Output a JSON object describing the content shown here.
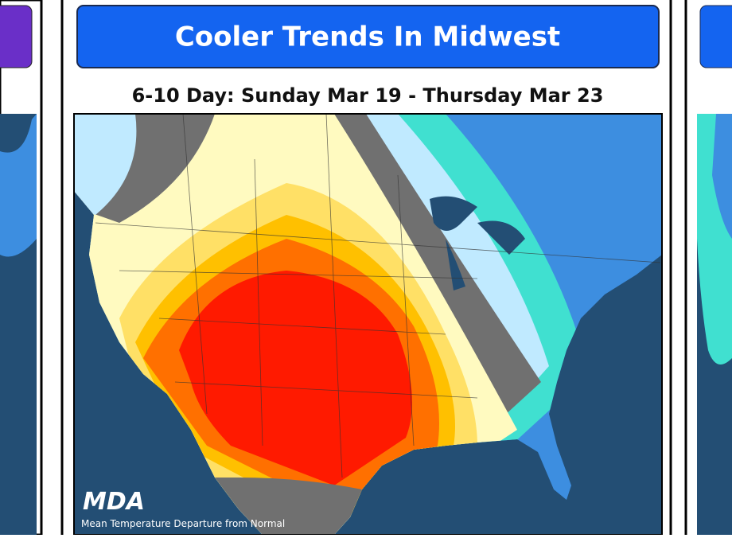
{
  "header": {
    "title": "Cooler Trends In Midwest",
    "subtitle": "6-10 Day: Sunday Mar 19 - Thursday Mar 23"
  },
  "map": {
    "logo": "MDA",
    "caption": "Mean Temperature Departure from Normal"
  }
}
